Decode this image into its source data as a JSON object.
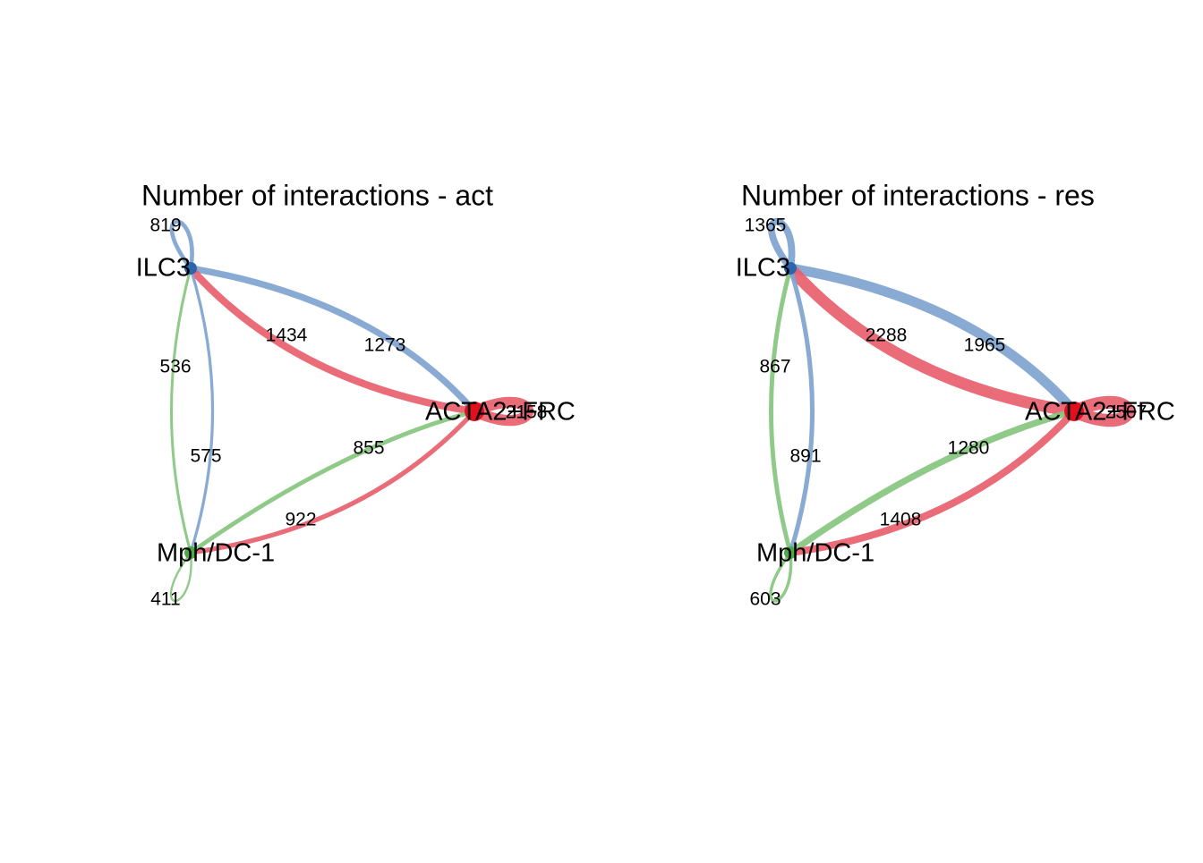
{
  "plots": [
    {
      "title": "Number of interactions - act",
      "nodes": [
        {
          "label": "ILC3",
          "color": "#2b66ad"
        },
        {
          "label": "ACTA2+FRC",
          "color": "#e0101c"
        },
        {
          "label": "Mph/DC-1",
          "color": "#4aab46"
        }
      ],
      "edges": [
        {
          "from": 0,
          "to": 0,
          "value": 819
        },
        {
          "from": 0,
          "to": 1,
          "value": 1273
        },
        {
          "from": 1,
          "to": 0,
          "value": 1434
        },
        {
          "from": 2,
          "to": 0,
          "value": 536
        },
        {
          "from": 0,
          "to": 2,
          "value": 575
        },
        {
          "from": 2,
          "to": 1,
          "value": 855
        },
        {
          "from": 1,
          "to": 2,
          "value": 922
        },
        {
          "from": 2,
          "to": 2,
          "value": 411
        },
        {
          "from": 1,
          "to": 1,
          "value": 2158
        }
      ]
    },
    {
      "title": "Number of interactions - res",
      "nodes": [
        {
          "label": "ILC3",
          "color": "#2b66ad"
        },
        {
          "label": "ACTA2+FRC",
          "color": "#e0101c"
        },
        {
          "label": "Mph/DC-1",
          "color": "#4aab46"
        }
      ],
      "edges": [
        {
          "from": 0,
          "to": 0,
          "value": 1365
        },
        {
          "from": 0,
          "to": 1,
          "value": 1965
        },
        {
          "from": 1,
          "to": 0,
          "value": 2288
        },
        {
          "from": 2,
          "to": 0,
          "value": 867
        },
        {
          "from": 0,
          "to": 2,
          "value": 891
        },
        {
          "from": 2,
          "to": 1,
          "value": 1280
        },
        {
          "from": 1,
          "to": 2,
          "value": 1408
        },
        {
          "from": 2,
          "to": 2,
          "value": 603
        },
        {
          "from": 1,
          "to": 1,
          "value": 2507
        }
      ]
    }
  ]
}
